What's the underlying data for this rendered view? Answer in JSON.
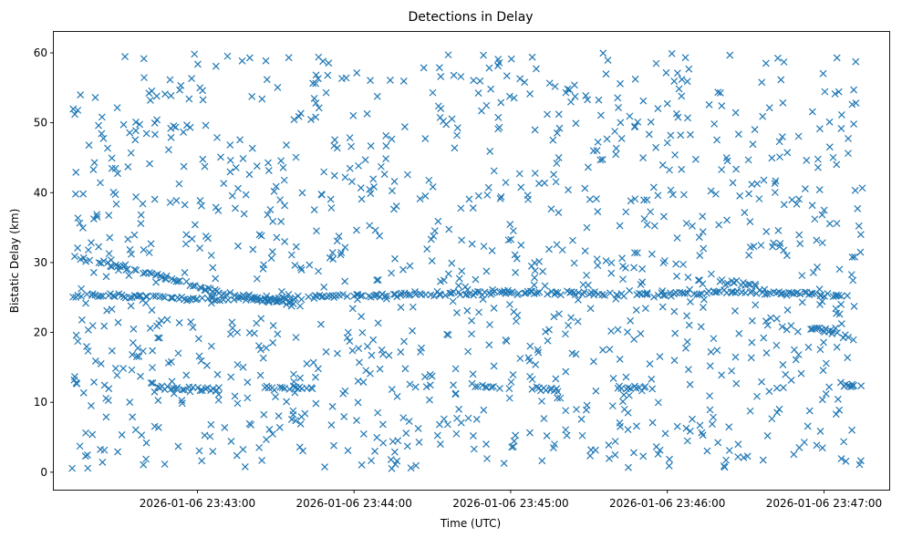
{
  "chart_data": {
    "type": "scatter",
    "title": "Detections in Delay",
    "xlabel": "Time (UTC)",
    "ylabel": "Bistatic Delay (km)",
    "x_unit": "timestamp (UTC)",
    "xlim": [
      "2026-01-06 23:42:05",
      "2026-01-06 23:47:25"
    ],
    "ylim": [
      -2.5,
      63
    ],
    "x_ticks": [
      "2026-01-06 23:43:00",
      "2026-01-06 23:44:00",
      "2026-01-06 23:45:00",
      "2026-01-06 23:46:00",
      "2026-01-06 23:47:00"
    ],
    "y_ticks": [
      "0",
      "10",
      "20",
      "30",
      "40",
      "50",
      "60"
    ],
    "grid": false,
    "marker": "x",
    "color": "#1f77b4",
    "series": [
      {
        "time_range": [
          "2026-01-06 23:42:12",
          "2026-01-06 23:47:15"
        ],
        "tracks": [
          {
            "points": [
              [
                "2026-01-06 23:42:12",
                25.3
              ],
              [
                "2026-01-06 23:42:40",
                25.1
              ],
              [
                "2026-01-06 23:43:20",
                24.6
              ],
              [
                "2026-01-06 23:43:50",
                25.2
              ],
              [
                "2026-01-06 23:44:30",
                25.4
              ],
              [
                "2026-01-06 23:45:10",
                25.8
              ],
              [
                "2026-01-06 23:45:50",
                25.4
              ],
              [
                "2026-01-06 23:46:30",
                25.9
              ],
              [
                "2026-01-06 23:47:10",
                25.2
              ]
            ]
          },
          {
            "points": [
              [
                "2026-01-06 23:42:13",
                30.8
              ],
              [
                "2026-01-06 23:42:40",
                28.6
              ],
              [
                "2026-01-06 23:43:10",
                25.6
              ],
              [
                "2026-01-06 23:43:40",
                23.8
              ]
            ]
          },
          {
            "points": [
              [
                "2026-01-06 23:46:55",
                20.6
              ],
              [
                "2026-01-06 23:47:10",
                19.4
              ]
            ]
          },
          {
            "points": [
              [
                "2026-01-06 23:42:45",
                12.1
              ],
              [
                "2026-01-06 23:43:10",
                11.8
              ]
            ]
          },
          {
            "points": [
              [
                "2026-01-06 23:43:25",
                12.2
              ],
              [
                "2026-01-06 23:43:45",
                12.0
              ]
            ]
          },
          {
            "points": [
              [
                "2026-01-06 23:44:45",
                12.4
              ],
              [
                "2026-01-06 23:45:00",
                12.0
              ]
            ]
          },
          {
            "points": [
              [
                "2026-01-06 23:45:10",
                12.0
              ],
              [
                "2026-01-06 23:45:20",
                11.7
              ]
            ]
          },
          {
            "points": [
              [
                "2026-01-06 23:45:40",
                12.0
              ],
              [
                "2026-01-06 23:45:55",
                12.1
              ]
            ]
          },
          {
            "points": [
              [
                "2026-01-06 23:47:05",
                12.6
              ],
              [
                "2026-01-06 23:47:15",
                12.3
              ]
            ]
          },
          {
            "points": [
              [
                "2026-01-06 23:46:20",
                27.5
              ],
              [
                "2026-01-06 23:46:35",
                26.6
              ]
            ]
          }
        ],
        "clutter_y_range": [
          0.5,
          60
        ],
        "clutter_point_count": 1150
      }
    ]
  }
}
